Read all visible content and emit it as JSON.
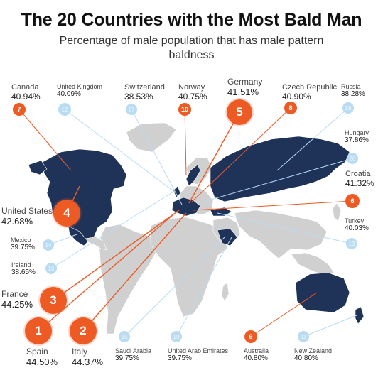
{
  "title": "The 20 Countries with the Most Bald Man",
  "subtitle": "Percentage of male population that has male pattern baldness",
  "colors": {
    "highlight": "#ee5a24",
    "low_rank": "#b9dcf2",
    "map_countries": "#1f3358",
    "map_land": "#d0d0d0",
    "leader_top": "#ee5a24",
    "leader_low": "#b9dcf2"
  },
  "chart_data": {
    "type": "map",
    "title": "The 20 Countries with the Most Bald Man",
    "subtitle": "Percentage of male population that has male pattern baldness",
    "unit": "%",
    "series": [
      {
        "rank": 1,
        "country": "Spain",
        "value": 44.5,
        "value_label": "44.50%"
      },
      {
        "rank": 2,
        "country": "Italy",
        "value": 44.37,
        "value_label": "44.37%"
      },
      {
        "rank": 3,
        "country": "France",
        "value": 44.25,
        "value_label": "44.25%"
      },
      {
        "rank": 4,
        "country": "United States",
        "value": 42.68,
        "value_label": "42.68%"
      },
      {
        "rank": 5,
        "country": "Germany",
        "value": 41.51,
        "value_label": "41.51%"
      },
      {
        "rank": 6,
        "country": "Croatia",
        "value": 41.32,
        "value_label": "41.32%"
      },
      {
        "rank": 7,
        "country": "Canada",
        "value": 40.94,
        "value_label": "40.94%"
      },
      {
        "rank": 8,
        "country": "Czech Republic",
        "value": 40.9,
        "value_label": "40.90%"
      },
      {
        "rank": 9,
        "country": "Australia",
        "value": 40.8,
        "value_label": "40.80%"
      },
      {
        "rank": 10,
        "country": "Norway",
        "value": 40.75,
        "value_label": "40.75%"
      },
      {
        "rank": 11,
        "country": "New Zealand",
        "value": 40.8,
        "value_label": "40.80%"
      },
      {
        "rank": 12,
        "country": "United Kingdom",
        "value": 40.09,
        "value_label": "40.09%"
      },
      {
        "rank": 13,
        "country": "Turkey",
        "value": 40.03,
        "value_label": "40.03%"
      },
      {
        "rank": 14,
        "country": "Mexico",
        "value": 39.75,
        "value_label": "39.75%"
      },
      {
        "rank": 15,
        "country": "Saudi Arabia",
        "value": 39.75,
        "value_label": "39.75%"
      },
      {
        "rank": 16,
        "country": "Ireland",
        "value": 38.65,
        "value_label": "38.65%"
      },
      {
        "rank": 17,
        "country": "Switzerland",
        "value": 38.53,
        "value_label": "38.53%"
      },
      {
        "rank": 18,
        "country": "Russia",
        "value": 38.28,
        "value_label": "38.28%"
      },
      {
        "rank": 19,
        "country": "United Arab Emirates",
        "value": 39.75,
        "value_label": "39.75%"
      },
      {
        "rank": 20,
        "country": "Hungary",
        "value": 37.86,
        "value_label": "37.86%"
      }
    ]
  }
}
